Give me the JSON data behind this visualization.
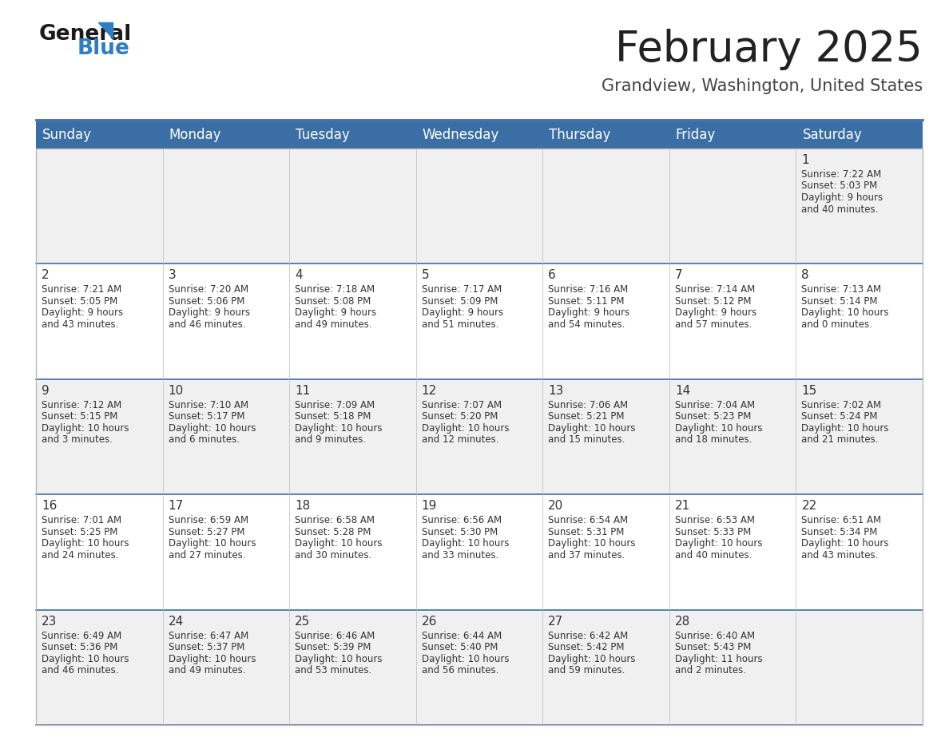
{
  "title": "February 2025",
  "subtitle": "Grandview, Washington, United States",
  "header_bg_color": "#3A6EA5",
  "header_text_color": "#FFFFFF",
  "cell_bg_color_odd": "#F0F0F0",
  "cell_bg_color_even": "#FFFFFF",
  "cell_text_color": "#333333",
  "day_number_color": "#333333",
  "title_color": "#222222",
  "subtitle_color": "#444444",
  "days_of_week": [
    "Sunday",
    "Monday",
    "Tuesday",
    "Wednesday",
    "Thursday",
    "Friday",
    "Saturday"
  ],
  "logo_color1": "#1a1a1a",
  "logo_color2": "#2E7EC2",
  "title_fontsize": 38,
  "subtitle_fontsize": 15,
  "header_fontsize": 12,
  "day_num_fontsize": 11,
  "cell_text_fontsize": 8.5,
  "grid_line_color": "#3A6EA5",
  "thin_line_color": "#BBBBBB",
  "calendar": [
    [
      {
        "day": null,
        "sunrise": null,
        "sunset": null,
        "daylight": null
      },
      {
        "day": null,
        "sunrise": null,
        "sunset": null,
        "daylight": null
      },
      {
        "day": null,
        "sunrise": null,
        "sunset": null,
        "daylight": null
      },
      {
        "day": null,
        "sunrise": null,
        "sunset": null,
        "daylight": null
      },
      {
        "day": null,
        "sunrise": null,
        "sunset": null,
        "daylight": null
      },
      {
        "day": null,
        "sunrise": null,
        "sunset": null,
        "daylight": null
      },
      {
        "day": 1,
        "sunrise": "7:22 AM",
        "sunset": "5:03 PM",
        "daylight": "9 hours and 40 minutes."
      }
    ],
    [
      {
        "day": 2,
        "sunrise": "7:21 AM",
        "sunset": "5:05 PM",
        "daylight": "9 hours and 43 minutes."
      },
      {
        "day": 3,
        "sunrise": "7:20 AM",
        "sunset": "5:06 PM",
        "daylight": "9 hours and 46 minutes."
      },
      {
        "day": 4,
        "sunrise": "7:18 AM",
        "sunset": "5:08 PM",
        "daylight": "9 hours and 49 minutes."
      },
      {
        "day": 5,
        "sunrise": "7:17 AM",
        "sunset": "5:09 PM",
        "daylight": "9 hours and 51 minutes."
      },
      {
        "day": 6,
        "sunrise": "7:16 AM",
        "sunset": "5:11 PM",
        "daylight": "9 hours and 54 minutes."
      },
      {
        "day": 7,
        "sunrise": "7:14 AM",
        "sunset": "5:12 PM",
        "daylight": "9 hours and 57 minutes."
      },
      {
        "day": 8,
        "sunrise": "7:13 AM",
        "sunset": "5:14 PM",
        "daylight": "10 hours and 0 minutes."
      }
    ],
    [
      {
        "day": 9,
        "sunrise": "7:12 AM",
        "sunset": "5:15 PM",
        "daylight": "10 hours and 3 minutes."
      },
      {
        "day": 10,
        "sunrise": "7:10 AM",
        "sunset": "5:17 PM",
        "daylight": "10 hours and 6 minutes."
      },
      {
        "day": 11,
        "sunrise": "7:09 AM",
        "sunset": "5:18 PM",
        "daylight": "10 hours and 9 minutes."
      },
      {
        "day": 12,
        "sunrise": "7:07 AM",
        "sunset": "5:20 PM",
        "daylight": "10 hours and 12 minutes."
      },
      {
        "day": 13,
        "sunrise": "7:06 AM",
        "sunset": "5:21 PM",
        "daylight": "10 hours and 15 minutes."
      },
      {
        "day": 14,
        "sunrise": "7:04 AM",
        "sunset": "5:23 PM",
        "daylight": "10 hours and 18 minutes."
      },
      {
        "day": 15,
        "sunrise": "7:02 AM",
        "sunset": "5:24 PM",
        "daylight": "10 hours and 21 minutes."
      }
    ],
    [
      {
        "day": 16,
        "sunrise": "7:01 AM",
        "sunset": "5:25 PM",
        "daylight": "10 hours and 24 minutes."
      },
      {
        "day": 17,
        "sunrise": "6:59 AM",
        "sunset": "5:27 PM",
        "daylight": "10 hours and 27 minutes."
      },
      {
        "day": 18,
        "sunrise": "6:58 AM",
        "sunset": "5:28 PM",
        "daylight": "10 hours and 30 minutes."
      },
      {
        "day": 19,
        "sunrise": "6:56 AM",
        "sunset": "5:30 PM",
        "daylight": "10 hours and 33 minutes."
      },
      {
        "day": 20,
        "sunrise": "6:54 AM",
        "sunset": "5:31 PM",
        "daylight": "10 hours and 37 minutes."
      },
      {
        "day": 21,
        "sunrise": "6:53 AM",
        "sunset": "5:33 PM",
        "daylight": "10 hours and 40 minutes."
      },
      {
        "day": 22,
        "sunrise": "6:51 AM",
        "sunset": "5:34 PM",
        "daylight": "10 hours and 43 minutes."
      }
    ],
    [
      {
        "day": 23,
        "sunrise": "6:49 AM",
        "sunset": "5:36 PM",
        "daylight": "10 hours and 46 minutes."
      },
      {
        "day": 24,
        "sunrise": "6:47 AM",
        "sunset": "5:37 PM",
        "daylight": "10 hours and 49 minutes."
      },
      {
        "day": 25,
        "sunrise": "6:46 AM",
        "sunset": "5:39 PM",
        "daylight": "10 hours and 53 minutes."
      },
      {
        "day": 26,
        "sunrise": "6:44 AM",
        "sunset": "5:40 PM",
        "daylight": "10 hours and 56 minutes."
      },
      {
        "day": 27,
        "sunrise": "6:42 AM",
        "sunset": "5:42 PM",
        "daylight": "10 hours and 59 minutes."
      },
      {
        "day": 28,
        "sunrise": "6:40 AM",
        "sunset": "5:43 PM",
        "daylight": "11 hours and 2 minutes."
      },
      {
        "day": null,
        "sunrise": null,
        "sunset": null,
        "daylight": null
      }
    ]
  ]
}
